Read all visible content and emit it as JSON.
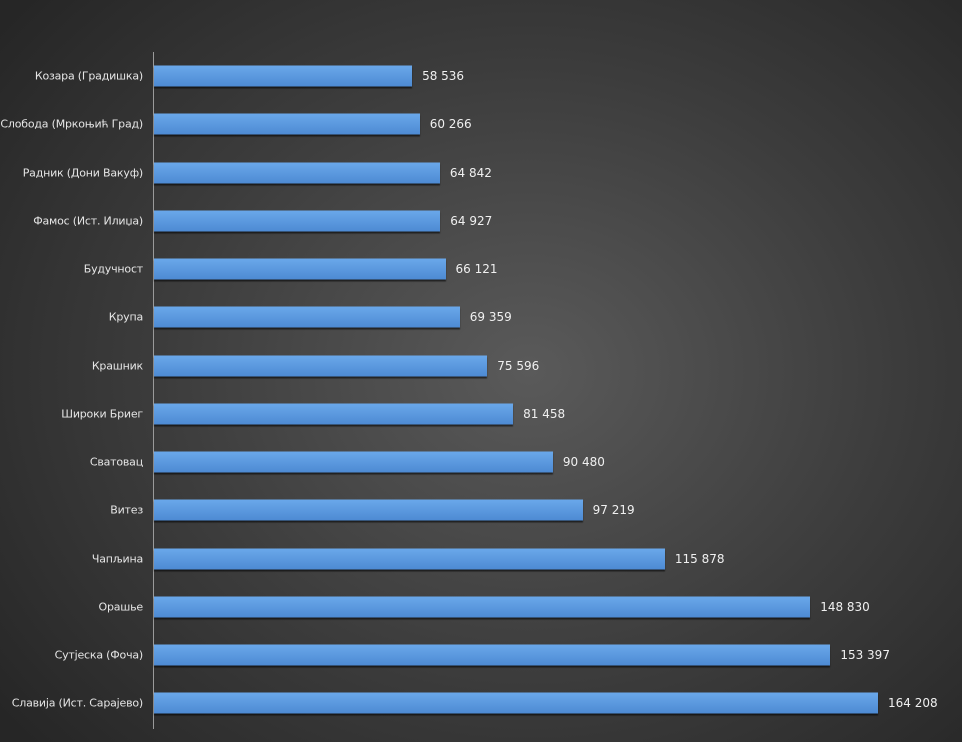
{
  "chart_data": {
    "type": "bar",
    "orientation": "horizontal",
    "title": "",
    "xlabel": "",
    "ylabel": "",
    "categories": [
      "Козара (Градишка)",
      "Слобода (Мркоњић Град)",
      "Радник (Дони Вакуф)",
      "Фамос (Ист. Илиџа)",
      "Будучност",
      "Крупа",
      "Крашник",
      "Широки Бриег",
      "Сватовац",
      "Витез",
      "Чапљина",
      "Орашье",
      "Сутјеска (Фоча)",
      "Славија (Ист. Сарајево)"
    ],
    "values": [
      58536,
      60266,
      64842,
      64927,
      66121,
      69359,
      75596,
      81458,
      90480,
      97219,
      115878,
      148830,
      153397,
      164208
    ],
    "value_labels": [
      "58 536",
      "60 266",
      "64 842",
      "64 927",
      "66 121",
      "69 359",
      "75 596",
      "81 458",
      "90 480",
      "97 219",
      "115 878",
      "148 830",
      "153 397",
      "164 208"
    ],
    "xlim": [
      0,
      164208
    ],
    "grid": false,
    "bar_color": "#5b9be0"
  }
}
